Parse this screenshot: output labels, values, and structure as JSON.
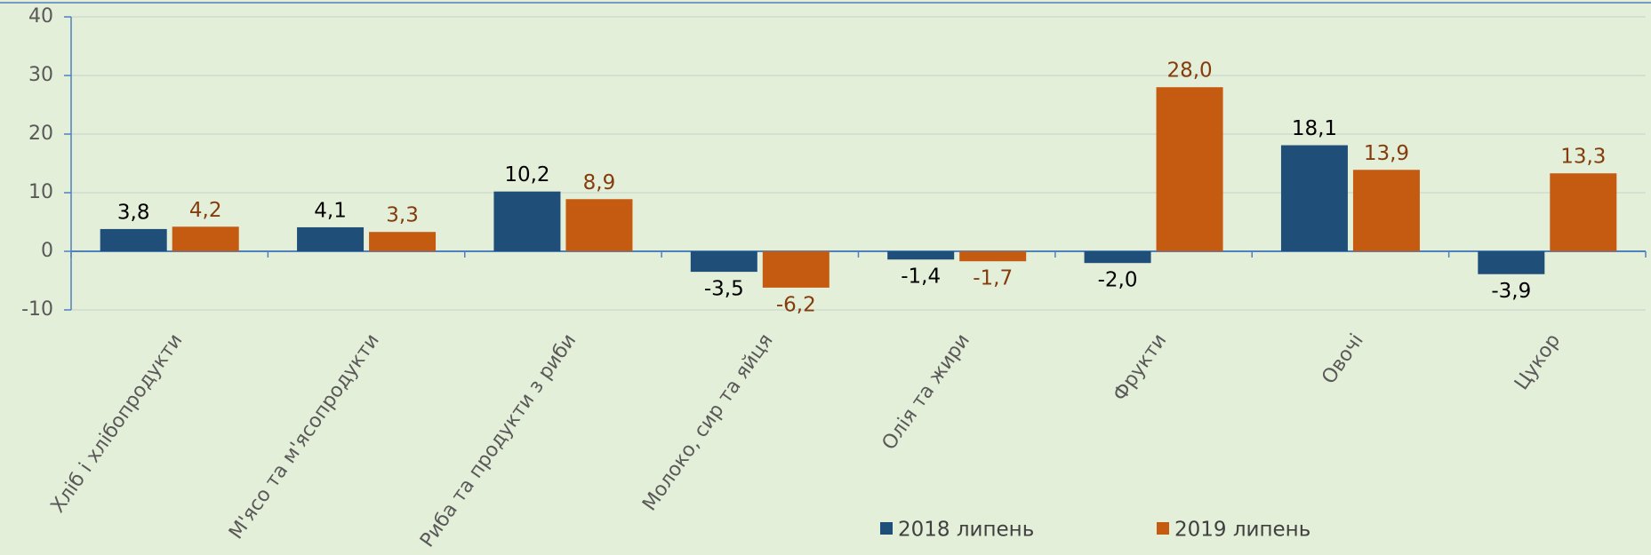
{
  "chart_data": {
    "type": "bar",
    "categories": [
      "Хліб і хлібопродукти",
      "М'ясо та м'ясопродукти",
      "Риба та продукти з риби",
      "Молоко, сир та яйця",
      "Олія та жири",
      "Фрукти",
      "Овочі",
      "Цукор"
    ],
    "series": [
      {
        "name": "2018 липень",
        "color": "#1f4e79",
        "label_color": "#000000",
        "values": [
          3.8,
          4.1,
          10.2,
          -3.5,
          -1.4,
          -2.0,
          18.1,
          -3.9
        ],
        "value_labels": [
          "3,8",
          "4,1",
          "10,2",
          "-3,5",
          "-1,4",
          "-2,0",
          "18,1",
          "-3,9"
        ]
      },
      {
        "name": "2019 липень",
        "color": "#c55a11",
        "label_color": "#843c0c",
        "values": [
          4.2,
          3.3,
          8.9,
          -6.2,
          -1.7,
          28.0,
          13.9,
          13.3
        ],
        "value_labels": [
          "4,2",
          "3,3",
          "8,9",
          "-6,2",
          "-1,7",
          "28,0",
          "13,9",
          "13,3"
        ]
      }
    ],
    "ylim": [
      -10,
      40
    ],
    "yticks": [
      -10,
      0,
      10,
      20,
      30,
      40
    ],
    "grid": true,
    "legend": "bottom"
  }
}
